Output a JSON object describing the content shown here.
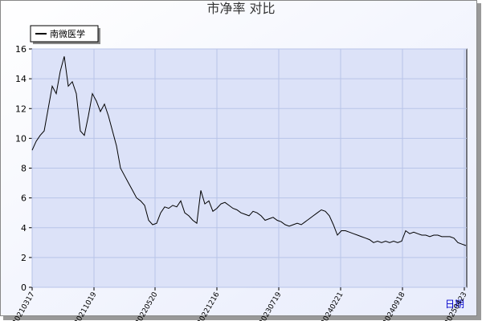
{
  "chart_data": {
    "type": "line",
    "title": "市净率  对比",
    "xlabel": "日期",
    "legend_position": "upper left",
    "grid": true,
    "series": [
      {
        "name": "南微医学",
        "color": "#000000",
        "values": [
          9.2,
          9.8,
          10.2,
          10.5,
          12.0,
          13.5,
          13.0,
          14.5,
          15.5,
          13.5,
          13.8,
          13.0,
          10.5,
          10.2,
          11.5,
          13.0,
          12.5,
          11.8,
          12.3,
          11.5,
          10.5,
          9.5,
          8.0,
          7.5,
          7.0,
          6.5,
          6.0,
          5.8,
          5.5,
          4.5,
          4.2,
          4.3,
          5.0,
          5.4,
          5.3,
          5.5,
          5.4,
          5.8,
          5.0,
          4.8,
          4.5,
          4.3,
          6.5,
          5.6,
          5.8,
          5.1,
          5.3,
          5.6,
          5.7,
          5.5,
          5.3,
          5.2,
          5.0,
          4.9,
          4.8,
          5.1,
          5.0,
          4.8,
          4.5,
          4.6,
          4.7,
          4.5,
          4.4,
          4.2,
          4.1,
          4.2,
          4.3,
          4.2,
          4.4,
          4.6,
          4.8,
          5.0,
          5.2,
          5.1,
          4.8,
          4.2,
          3.5,
          3.8,
          3.8,
          3.7,
          3.6,
          3.5,
          3.4,
          3.3,
          3.2,
          3.0,
          3.1,
          3.0,
          3.1,
          3.0,
          3.1,
          3.0,
          3.1,
          3.8,
          3.6,
          3.7,
          3.6,
          3.5,
          3.5,
          3.4,
          3.5,
          3.5,
          3.4,
          3.4,
          3.4,
          3.3,
          3.0,
          2.9,
          2.8
        ]
      }
    ],
    "xlim": [
      0,
      108
    ],
    "xticks": [
      {
        "value": 0,
        "label": "20210317"
      },
      {
        "value": 15.4,
        "label": "20211019"
      },
      {
        "value": 30.6,
        "label": "20220520"
      },
      {
        "value": 46,
        "label": "20221216"
      },
      {
        "value": 61.4,
        "label": "20230719"
      },
      {
        "value": 76.8,
        "label": "20240221"
      },
      {
        "value": 92.2,
        "label": "20240918"
      },
      {
        "value": 107.6,
        "label": "20250423"
      }
    ],
    "ylim": [
      0,
      16
    ],
    "yticks": [
      0,
      2,
      4,
      6,
      8,
      10,
      12,
      14,
      16
    ]
  }
}
